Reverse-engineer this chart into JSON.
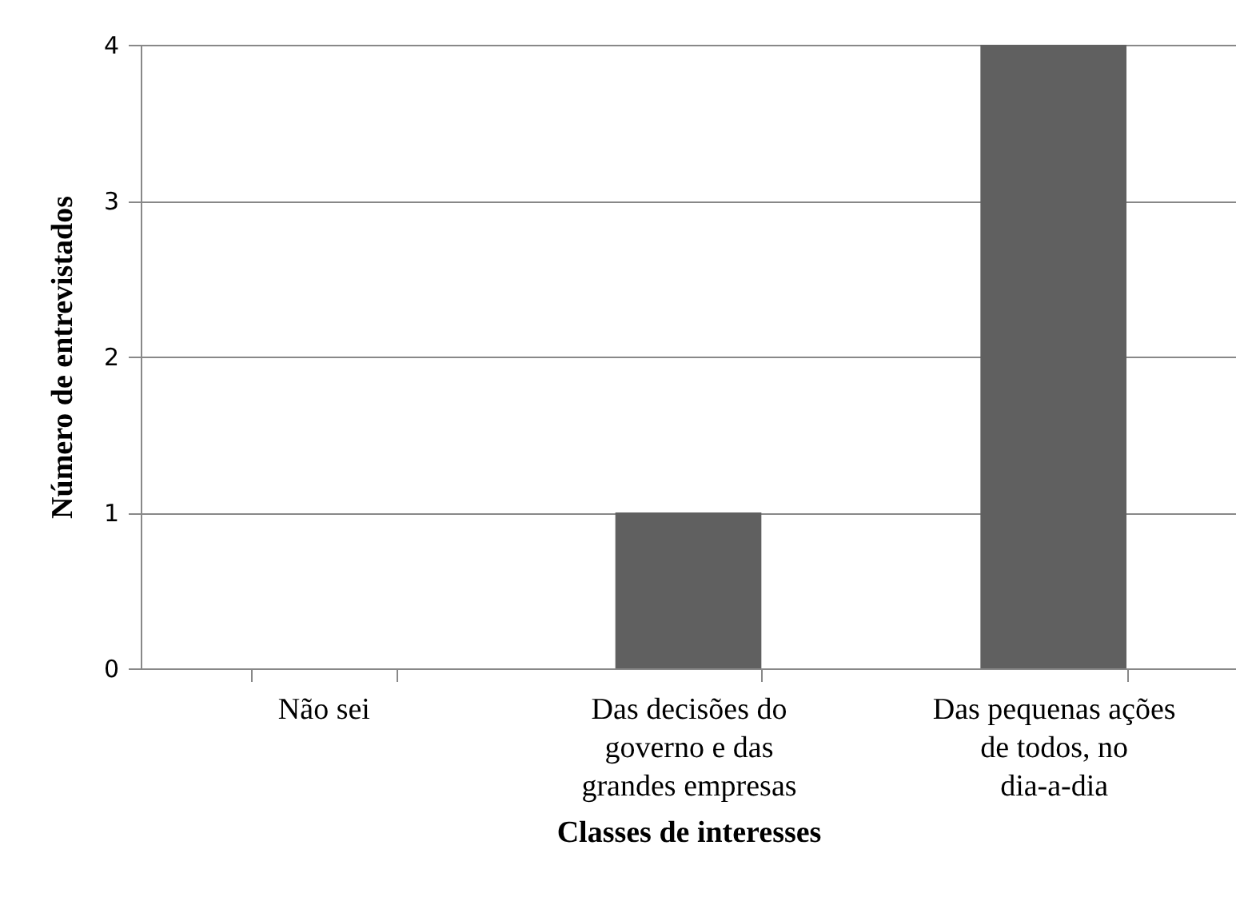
{
  "chart_data": {
    "type": "bar",
    "xlabel": "Classes de interesses",
    "ylabel": "Número de entrevistados",
    "categories": [
      "Não sei",
      "Das decisões do governo e das grandes empresas",
      "Das pequenas ações de todos, no dia-a-dia"
    ],
    "values": [
      0,
      1,
      4
    ],
    "color": "#606060",
    "ylim": [
      0,
      4
    ],
    "yticks": [
      0,
      1,
      2,
      3,
      4
    ],
    "grid": "y"
  }
}
